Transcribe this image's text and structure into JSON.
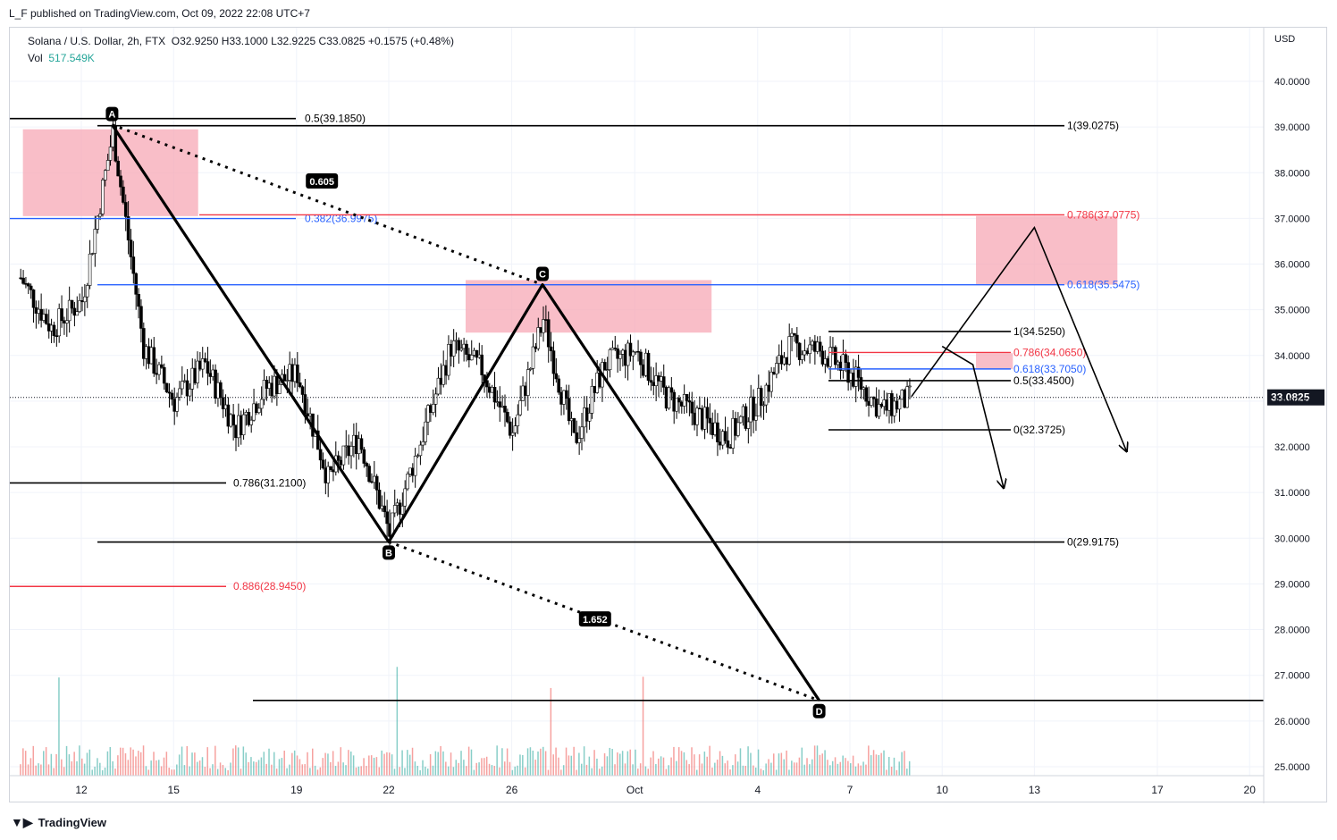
{
  "header": {
    "publisher": "L_F published on TradingView.com, Oct 09, 2022 22:08 UTC+7"
  },
  "legend": {
    "symbol": "Solana / U.S. Dollar, 2h, FTX",
    "ohlc": "O32.9250  H33.1000  L32.9225  C33.0825  +0.1575 (+0.48%)",
    "vol_label": "Vol",
    "vol_value": "517.549K"
  },
  "footer": {
    "brand": "TradingView"
  },
  "colors": {
    "bull": "#26a69a",
    "bear": "#ef5350",
    "zone": "#f7a8b5",
    "blue": "#2962ff",
    "red": "#f23645",
    "black": "#000000"
  },
  "chart_data": {
    "type": "candlestick",
    "currency": "USD",
    "ylim": [
      24.8,
      40.5
    ],
    "y_ticks": [
      "40.0000",
      "39.0000",
      "38.0000",
      "37.0000",
      "36.0000",
      "35.0000",
      "34.0000",
      "33.0000",
      "32.0000",
      "31.0000",
      "30.0000",
      "29.0000",
      "28.0000",
      "27.0000",
      "26.0000",
      "25.0000"
    ],
    "x_ticks": [
      "12",
      "15",
      "19",
      "22",
      "26",
      "Oct",
      "4",
      "7",
      "10",
      "13",
      "17",
      "20"
    ],
    "last_price": "33.0825",
    "harmonic_points": [
      {
        "label": "A",
        "date": "Sep 13",
        "price": 39.05
      },
      {
        "label": "B",
        "date": "Sep 22",
        "price": 29.92
      },
      {
        "label": "C",
        "date": "Sep 27",
        "price": 35.55
      },
      {
        "label": "D",
        "date": "Oct 6",
        "price": 26.45
      }
    ],
    "ratios": [
      {
        "label": "0.605"
      },
      {
        "label": "1.652"
      }
    ],
    "levels": [
      {
        "label": "0.5(39.1850)",
        "price": 39.185,
        "color": "black"
      },
      {
        "label": "1(39.0275)",
        "price": 39.0275,
        "color": "black"
      },
      {
        "label": "0.382(36.9975)",
        "price": 36.9975,
        "color": "blue"
      },
      {
        "label": "0.786(37.0775)",
        "price": 37.0775,
        "color": "red"
      },
      {
        "label": "0.618(35.5475)",
        "price": 35.5475,
        "color": "blue"
      },
      {
        "label": "1(34.5250)",
        "price": 34.525,
        "color": "black"
      },
      {
        "label": "0.786(34.0650)",
        "price": 34.065,
        "color": "red"
      },
      {
        "label": "0.618(33.7050)",
        "price": 33.705,
        "color": "blue"
      },
      {
        "label": "0.5(33.4500)",
        "price": 33.45,
        "color": "black"
      },
      {
        "label": "0(32.3725)",
        "price": 32.3725,
        "color": "black"
      },
      {
        "label": "0.786(31.2100)",
        "price": 31.21,
        "color": "black"
      },
      {
        "label": "0(29.9175)",
        "price": 29.9175,
        "color": "black"
      },
      {
        "label": "0.886(28.9450)",
        "price": 28.945,
        "color": "red"
      },
      {
        "label": "",
        "price": 26.45,
        "color": "black"
      }
    ],
    "price_path": [
      {
        "date": "Sep 10",
        "price": 35.7
      },
      {
        "date": "Sep 11",
        "price": 34.6
      },
      {
        "date": "Sep 12",
        "price": 35.2
      },
      {
        "date": "Sep 13",
        "price": 38.9
      },
      {
        "date": "Sep 14",
        "price": 34.2
      },
      {
        "date": "Sep 15",
        "price": 33.0
      },
      {
        "date": "Sep 16",
        "price": 33.8
      },
      {
        "date": "Sep 17",
        "price": 32.4
      },
      {
        "date": "Sep 18",
        "price": 33.3
      },
      {
        "date": "Sep 19",
        "price": 33.6
      },
      {
        "date": "Sep 20",
        "price": 31.3
      },
      {
        "date": "Sep 21",
        "price": 32.2
      },
      {
        "date": "Sep 22",
        "price": 30.1
      },
      {
        "date": "Sep 23",
        "price": 32.1
      },
      {
        "date": "Sep 24",
        "price": 34.2
      },
      {
        "date": "Sep 25",
        "price": 33.7
      },
      {
        "date": "Sep 26",
        "price": 32.3
      },
      {
        "date": "Sep 27",
        "price": 34.8
      },
      {
        "date": "Sep 28",
        "price": 32.1
      },
      {
        "date": "Sep 29",
        "price": 33.8
      },
      {
        "date": "Sep 30",
        "price": 34.1
      },
      {
        "date": "Oct 1",
        "price": 33.1
      },
      {
        "date": "Oct 2",
        "price": 32.7
      },
      {
        "date": "Oct 3",
        "price": 32.2
      },
      {
        "date": "Oct 4",
        "price": 33.0
      },
      {
        "date": "Oct 5",
        "price": 34.2
      },
      {
        "date": "Oct 6",
        "price": 34.1
      },
      {
        "date": "Oct 7",
        "price": 33.6
      },
      {
        "date": "Oct 8",
        "price": 32.8
      },
      {
        "date": "Oct 9",
        "price": 33.08
      }
    ],
    "projections": [
      {
        "name": "bullish-projection",
        "path": [
          {
            "date": "Oct 9",
            "price": 33.1
          },
          {
            "date": "Oct 13",
            "price": 36.8
          },
          {
            "date": "Oct 16",
            "price": 31.9
          }
        ]
      },
      {
        "name": "bearish-projection",
        "path": [
          {
            "date": "Oct 10",
            "price": 34.2
          },
          {
            "date": "Oct 11",
            "price": 33.8
          },
          {
            "date": "Oct 12",
            "price": 31.1
          }
        ]
      }
    ]
  }
}
